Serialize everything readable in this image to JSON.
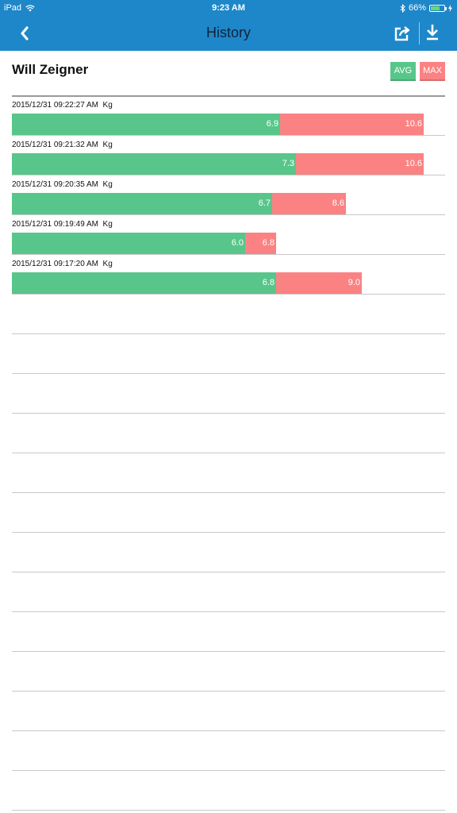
{
  "status_bar": {
    "device": "iPad",
    "time": "9:23 AM",
    "battery_percent": "66%",
    "battery_level": 0.66
  },
  "nav": {
    "title": "History",
    "back_icon": "chevron-left-icon",
    "share_icon": "share-icon",
    "download_icon": "download-icon"
  },
  "header": {
    "name": "Will Zeigner",
    "avg_label": "AVG",
    "max_label": "MAX"
  },
  "colors": {
    "nav": "#1e87c9",
    "avg": "#58c68a",
    "max": "#fb8283"
  },
  "chart_data": {
    "type": "bar",
    "unit": "Kg",
    "series": [
      {
        "name": "AVG",
        "values": [
          6.9,
          7.3,
          6.7,
          6.0,
          6.8
        ]
      },
      {
        "name": "MAX",
        "values": [
          10.6,
          10.6,
          8.6,
          6.8,
          9.0
        ]
      }
    ],
    "records": [
      {
        "timestamp": "2015/12/31 09:22:27 AM",
        "unit": "Kg",
        "avg": 6.9,
        "avg_label": "6.9",
        "max": 10.6,
        "max_label": "10.6"
      },
      {
        "timestamp": "2015/12/31 09:21:32 AM",
        "unit": "Kg",
        "avg": 7.3,
        "avg_label": "7.3",
        "max": 10.6,
        "max_label": "10.6"
      },
      {
        "timestamp": "2015/12/31 09:20:35 AM",
        "unit": "Kg",
        "avg": 6.7,
        "avg_label": "6.7",
        "max": 8.6,
        "max_label": "8.6"
      },
      {
        "timestamp": "2015/12/31 09:19:49 AM",
        "unit": "Kg",
        "avg": 6.0,
        "avg_label": "6.0",
        "max": 6.8,
        "max_label": "6.8"
      },
      {
        "timestamp": "2015/12/31 09:17:20 AM",
        "unit": "Kg",
        "avg": 6.8,
        "avg_label": "6.8",
        "max": 9.0,
        "max_label": "9.0"
      }
    ]
  }
}
